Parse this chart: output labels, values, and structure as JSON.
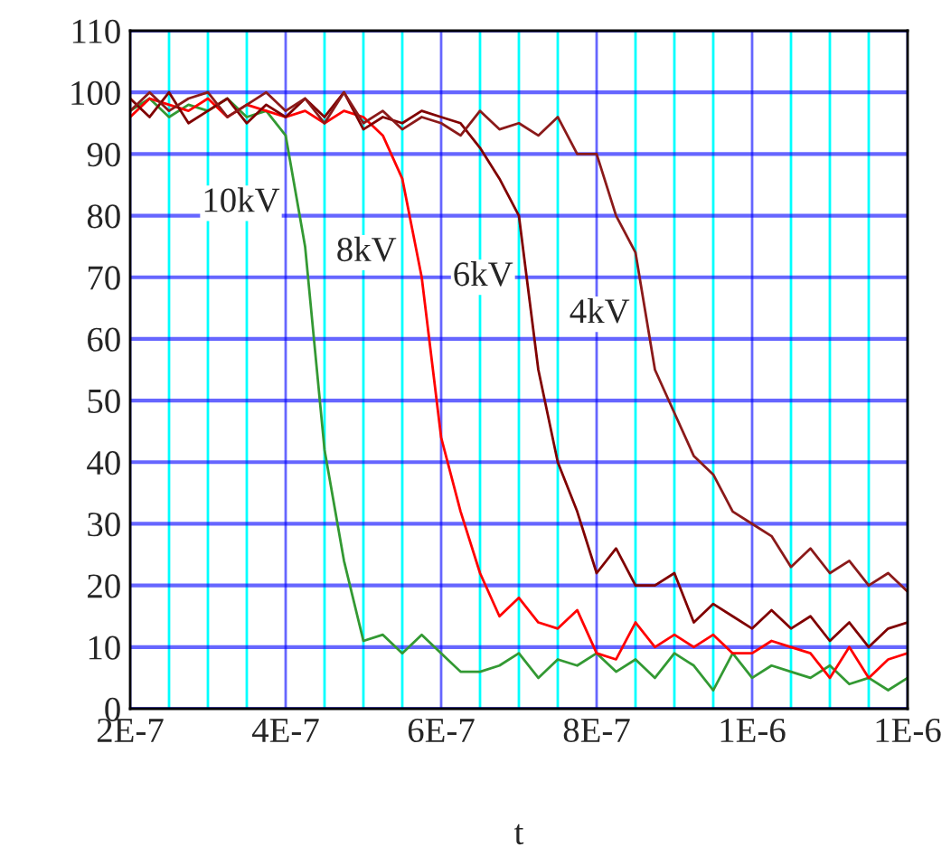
{
  "chart_data": {
    "type": "line",
    "xlabel": "t",
    "x": [
      2e-07,
      2.25e-07,
      2.5e-07,
      2.75e-07,
      3e-07,
      3.25e-07,
      3.5e-07,
      3.75e-07,
      4e-07,
      4.25e-07,
      4.5e-07,
      4.75e-07,
      5e-07,
      5.25e-07,
      5.5e-07,
      5.75e-07,
      6e-07,
      6.25e-07,
      6.5e-07,
      6.75e-07,
      7e-07,
      7.25e-07,
      7.5e-07,
      7.75e-07,
      8e-07,
      8.25e-07,
      8.5e-07,
      8.75e-07,
      9e-07,
      9.25e-07,
      9.5e-07,
      9.75e-07,
      1e-06,
      1.025e-06,
      1.05e-06,
      1.075e-06,
      1.1e-06,
      1.125e-06,
      1.15e-06,
      1.175e-06,
      1.2e-06
    ],
    "series": [
      {
        "name": "10kV",
        "color": "#339933",
        "values": [
          97,
          99,
          96,
          98,
          97,
          99,
          96,
          97,
          93,
          75,
          42,
          24,
          11,
          12,
          9,
          12,
          9,
          6,
          6,
          7,
          9,
          5,
          8,
          7,
          9,
          6,
          8,
          5,
          9,
          7,
          3,
          9,
          5,
          7,
          6,
          5,
          7,
          4,
          5,
          3,
          5
        ]
      },
      {
        "name": "8kV",
        "color": "#ff0000",
        "values": [
          96,
          99,
          98,
          97,
          99,
          96,
          98,
          97,
          96,
          97,
          95,
          97,
          96,
          93,
          86,
          70,
          44,
          32,
          22,
          15,
          18,
          14,
          13,
          16,
          9,
          8,
          14,
          10,
          12,
          10,
          12,
          9,
          9,
          11,
          10,
          9,
          5,
          10,
          5,
          8,
          9
        ]
      },
      {
        "name": "6kV",
        "color": "#800000",
        "values": [
          99,
          96,
          100,
          95,
          97,
          99,
          95,
          98,
          96,
          99,
          96,
          100,
          94,
          96,
          95,
          97,
          96,
          95,
          91,
          86,
          80,
          55,
          40,
          32,
          22,
          26,
          20,
          20,
          22,
          14,
          17,
          15,
          13,
          16,
          13,
          15,
          11,
          14,
          10,
          13,
          14
        ]
      },
      {
        "name": "4kV",
        "color": "#8b1a1a",
        "values": [
          97,
          100,
          97,
          99,
          100,
          96,
          98,
          100,
          97,
          99,
          95,
          100,
          95,
          97,
          94,
          96,
          95,
          93,
          97,
          94,
          95,
          93,
          96,
          90,
          90,
          80,
          74,
          55,
          48,
          41,
          38,
          32,
          30,
          28,
          23,
          26,
          22,
          24,
          20,
          22,
          19
        ]
      }
    ],
    "xlim": [
      2e-07,
      1.2e-06
    ],
    "xticks": [
      {
        "value": 2e-07,
        "label": "2E-7"
      },
      {
        "value": 2.5e-07,
        "label": null
      },
      {
        "value": 3e-07,
        "label": null
      },
      {
        "value": 3.5e-07,
        "label": null
      },
      {
        "value": 4e-07,
        "label": "4E-7"
      },
      {
        "value": 4.5e-07,
        "label": null
      },
      {
        "value": 5e-07,
        "label": null
      },
      {
        "value": 5.5e-07,
        "label": null
      },
      {
        "value": 6e-07,
        "label": "6E-7"
      },
      {
        "value": 6.5e-07,
        "label": null
      },
      {
        "value": 7e-07,
        "label": null
      },
      {
        "value": 7.5e-07,
        "label": null
      },
      {
        "value": 8e-07,
        "label": "8E-7"
      },
      {
        "value": 8.5e-07,
        "label": null
      },
      {
        "value": 9e-07,
        "label": null
      },
      {
        "value": 9.5e-07,
        "label": null
      },
      {
        "value": 1e-06,
        "label": "1E-6"
      },
      {
        "value": 1.05e-06,
        "label": null
      },
      {
        "value": 1.1e-06,
        "label": null
      },
      {
        "value": 1.15e-06,
        "label": null
      },
      {
        "value": 1.2e-06,
        "label": "1E-6"
      }
    ],
    "ylim": [
      0,
      110
    ],
    "yticks": [
      0,
      10,
      20,
      30,
      40,
      50,
      60,
      70,
      80,
      90,
      100,
      110
    ],
    "grid": true,
    "line_style": "solid",
    "marker": "none",
    "legend": false
  }
}
